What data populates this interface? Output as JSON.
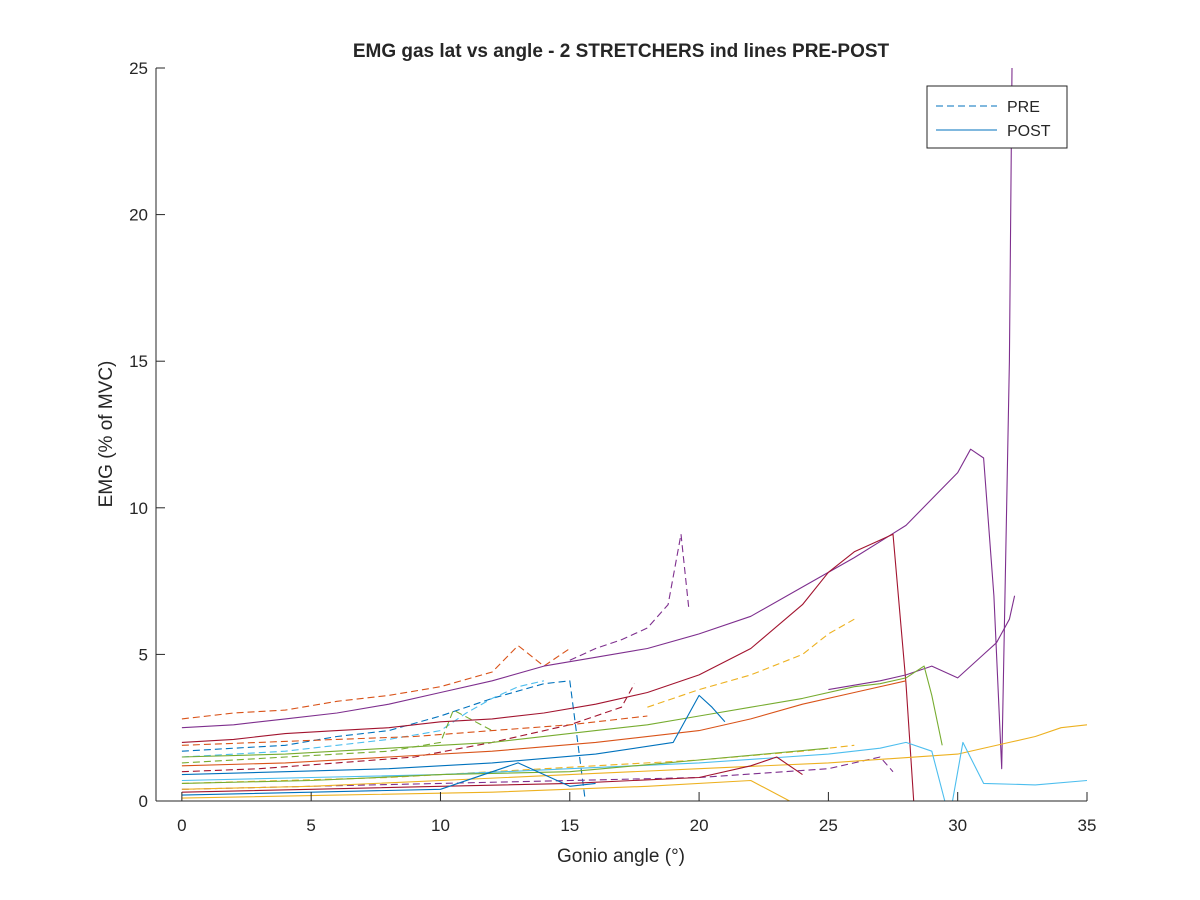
{
  "chart_data": {
    "type": "line",
    "title": "EMG gas lat vs angle - 2 STRETCHERS ind lines PRE-POST",
    "xlabel": "Gonio angle (°)",
    "ylabel": "EMG (% of MVC)",
    "xlim": [
      -1,
      35
    ],
    "ylim": [
      0,
      25
    ],
    "xticks": [
      0,
      5,
      10,
      15,
      20,
      25,
      30,
      35
    ],
    "yticks": [
      0,
      5,
      10,
      15,
      20,
      25
    ],
    "grid": false,
    "legend_position": "top-right",
    "legend": [
      {
        "label": "PRE",
        "style": "dashed",
        "color": "#0072BD"
      },
      {
        "label": "POST",
        "style": "solid",
        "color": "#0072BD"
      }
    ],
    "series": [
      {
        "style": "dashed",
        "color": "#D95319",
        "x": [
          0,
          2,
          4,
          6,
          8,
          10,
          12,
          13,
          14,
          15
        ],
        "y": [
          2.8,
          3.0,
          3.1,
          3.4,
          3.6,
          3.9,
          4.4,
          5.3,
          4.6,
          5.2
        ]
      },
      {
        "style": "dashed",
        "color": "#7E2F8E",
        "x": [
          15,
          16,
          17,
          18,
          18.8,
          19.3,
          19.6
        ],
        "y": [
          4.8,
          5.2,
          5.5,
          5.9,
          6.7,
          9.1,
          6.6
        ]
      },
      {
        "style": "dashed",
        "color": "#EDB120",
        "x": [
          18,
          20,
          22,
          24,
          25,
          26
        ],
        "y": [
          3.2,
          3.8,
          4.3,
          5.0,
          5.7,
          6.2
        ]
      },
      {
        "style": "dashed",
        "color": "#0072BD",
        "x": [
          0,
          2,
          4,
          6,
          8,
          10,
          12,
          14,
          15,
          15.6
        ],
        "y": [
          1.7,
          1.8,
          1.9,
          2.2,
          2.4,
          2.9,
          3.5,
          4.0,
          4.1,
          0
        ]
      },
      {
        "style": "dashed",
        "color": "#4DBEEE",
        "x": [
          0,
          2,
          4,
          6,
          8,
          10,
          11,
          12,
          13,
          14
        ],
        "y": [
          1.5,
          1.6,
          1.7,
          1.9,
          2.1,
          2.4,
          3.0,
          3.5,
          3.9,
          4.1
        ]
      },
      {
        "style": "dashed",
        "color": "#77AC30",
        "x": [
          0,
          2,
          4,
          6,
          8,
          10,
          10.5,
          12
        ],
        "y": [
          1.3,
          1.4,
          1.5,
          1.6,
          1.7,
          2.0,
          3.1,
          2.4
        ]
      },
      {
        "style": "dashed",
        "color": "#A2142F",
        "x": [
          0,
          3,
          6,
          9,
          12,
          15,
          17,
          17.5
        ],
        "y": [
          1.0,
          1.1,
          1.3,
          1.5,
          2.0,
          2.6,
          3.2,
          4.0
        ]
      },
      {
        "style": "dashed",
        "color": "#EDB120",
        "x": [
          0,
          4,
          8,
          12,
          16,
          20,
          24,
          26
        ],
        "y": [
          0.6,
          0.7,
          0.8,
          1.0,
          1.2,
          1.4,
          1.7,
          1.9
        ]
      },
      {
        "style": "dashed",
        "color": "#7E2F8E",
        "x": [
          0,
          5,
          10,
          15,
          20,
          25,
          27,
          27.5
        ],
        "y": [
          0.4,
          0.5,
          0.6,
          0.7,
          0.8,
          1.1,
          1.5,
          1.0
        ]
      },
      {
        "style": "dashed",
        "color": "#D95319",
        "x": [
          0,
          3,
          6,
          9,
          12,
          15,
          18
        ],
        "y": [
          1.9,
          2.0,
          2.1,
          2.2,
          2.4,
          2.6,
          2.9
        ]
      },
      {
        "style": "solid",
        "color": "#7E2F8E",
        "x": [
          0,
          2,
          4,
          6,
          8,
          10,
          12,
          14,
          16,
          18,
          20,
          22,
          24,
          26,
          28,
          29,
          30,
          30.5,
          31,
          31.4,
          31.7,
          32.0,
          32.1
        ],
        "y": [
          2.5,
          2.6,
          2.8,
          3.0,
          3.3,
          3.7,
          4.1,
          4.6,
          4.9,
          5.2,
          5.7,
          6.3,
          7.3,
          8.3,
          9.4,
          10.3,
          11.2,
          12.0,
          11.7,
          7.0,
          1.1,
          15.0,
          25.0
        ]
      },
      {
        "style": "solid",
        "color": "#A2142F",
        "x": [
          0,
          2,
          4,
          6,
          8,
          10,
          12,
          14,
          16,
          18,
          20,
          22,
          24,
          25,
          26,
          27,
          27.5,
          28,
          28.3
        ],
        "y": [
          2.0,
          2.1,
          2.3,
          2.4,
          2.5,
          2.7,
          2.8,
          3.0,
          3.3,
          3.7,
          4.3,
          5.2,
          6.7,
          7.8,
          8.5,
          8.9,
          9.1,
          4.0,
          0
        ]
      },
      {
        "style": "solid",
        "color": "#7E2F8E",
        "x": [
          25,
          27,
          28,
          29,
          30,
          31,
          31.5,
          32,
          32.2
        ],
        "y": [
          3.8,
          4.1,
          4.3,
          4.6,
          4.2,
          5.0,
          5.4,
          6.2,
          7.0
        ]
      },
      {
        "style": "solid",
        "color": "#77AC30",
        "x": [
          0,
          4,
          8,
          12,
          16,
          18,
          20,
          22,
          24,
          26,
          27,
          28,
          28.7,
          29,
          29.4
        ],
        "y": [
          1.5,
          1.6,
          1.8,
          2.0,
          2.4,
          2.6,
          2.9,
          3.2,
          3.5,
          3.9,
          4.0,
          4.2,
          4.6,
          3.6,
          1.9
        ]
      },
      {
        "style": "solid",
        "color": "#D95319",
        "x": [
          0,
          4,
          8,
          12,
          16,
          20,
          22,
          24,
          26,
          28
        ],
        "y": [
          1.2,
          1.3,
          1.5,
          1.7,
          2.0,
          2.4,
          2.8,
          3.3,
          3.7,
          4.1
        ]
      },
      {
        "style": "solid",
        "color": "#0072BD",
        "x": [
          0,
          4,
          8,
          12,
          16,
          19,
          20,
          20.5,
          21
        ],
        "y": [
          0.9,
          1.0,
          1.1,
          1.3,
          1.6,
          2.0,
          3.6,
          3.2,
          2.7
        ]
      },
      {
        "style": "solid",
        "color": "#EDB120",
        "x": [
          0,
          5,
          10,
          15,
          20,
          25,
          30,
          32,
          33,
          34,
          35
        ],
        "y": [
          0.4,
          0.5,
          0.7,
          0.9,
          1.1,
          1.3,
          1.6,
          2.0,
          2.2,
          2.5,
          2.6
        ]
      },
      {
        "style": "solid",
        "color": "#4DBEEE",
        "x": [
          0,
          5,
          10,
          15,
          20,
          25,
          27,
          28,
          29,
          29.5
        ],
        "y": [
          0.7,
          0.8,
          0.9,
          1.1,
          1.3,
          1.6,
          1.8,
          2.0,
          1.7,
          0
        ]
      },
      {
        "style": "solid",
        "color": "#4DBEEE",
        "x": [
          29.8,
          30.2,
          31,
          33,
          35
        ],
        "y": [
          0,
          2.0,
          0.6,
          0.55,
          0.7
        ]
      },
      {
        "style": "solid",
        "color": "#A2142F",
        "x": [
          0,
          5,
          10,
          15,
          20,
          22,
          23,
          24
        ],
        "y": [
          0.3,
          0.4,
          0.5,
          0.6,
          0.8,
          1.2,
          1.5,
          0.9
        ]
      },
      {
        "style": "solid",
        "color": "#77AC30",
        "x": [
          0,
          5,
          10,
          15,
          20,
          25
        ],
        "y": [
          0.6,
          0.7,
          0.9,
          1.0,
          1.4,
          1.8
        ]
      },
      {
        "style": "solid",
        "color": "#0072BD",
        "x": [
          0,
          5,
          10,
          13,
          15,
          16
        ],
        "y": [
          0.2,
          0.3,
          0.4,
          1.3,
          0.5,
          0.6
        ]
      },
      {
        "style": "solid",
        "color": "#EDB120",
        "x": [
          0,
          6,
          12,
          18,
          22,
          23.5
        ],
        "y": [
          0.1,
          0.2,
          0.3,
          0.5,
          0.7,
          0
        ]
      }
    ]
  }
}
